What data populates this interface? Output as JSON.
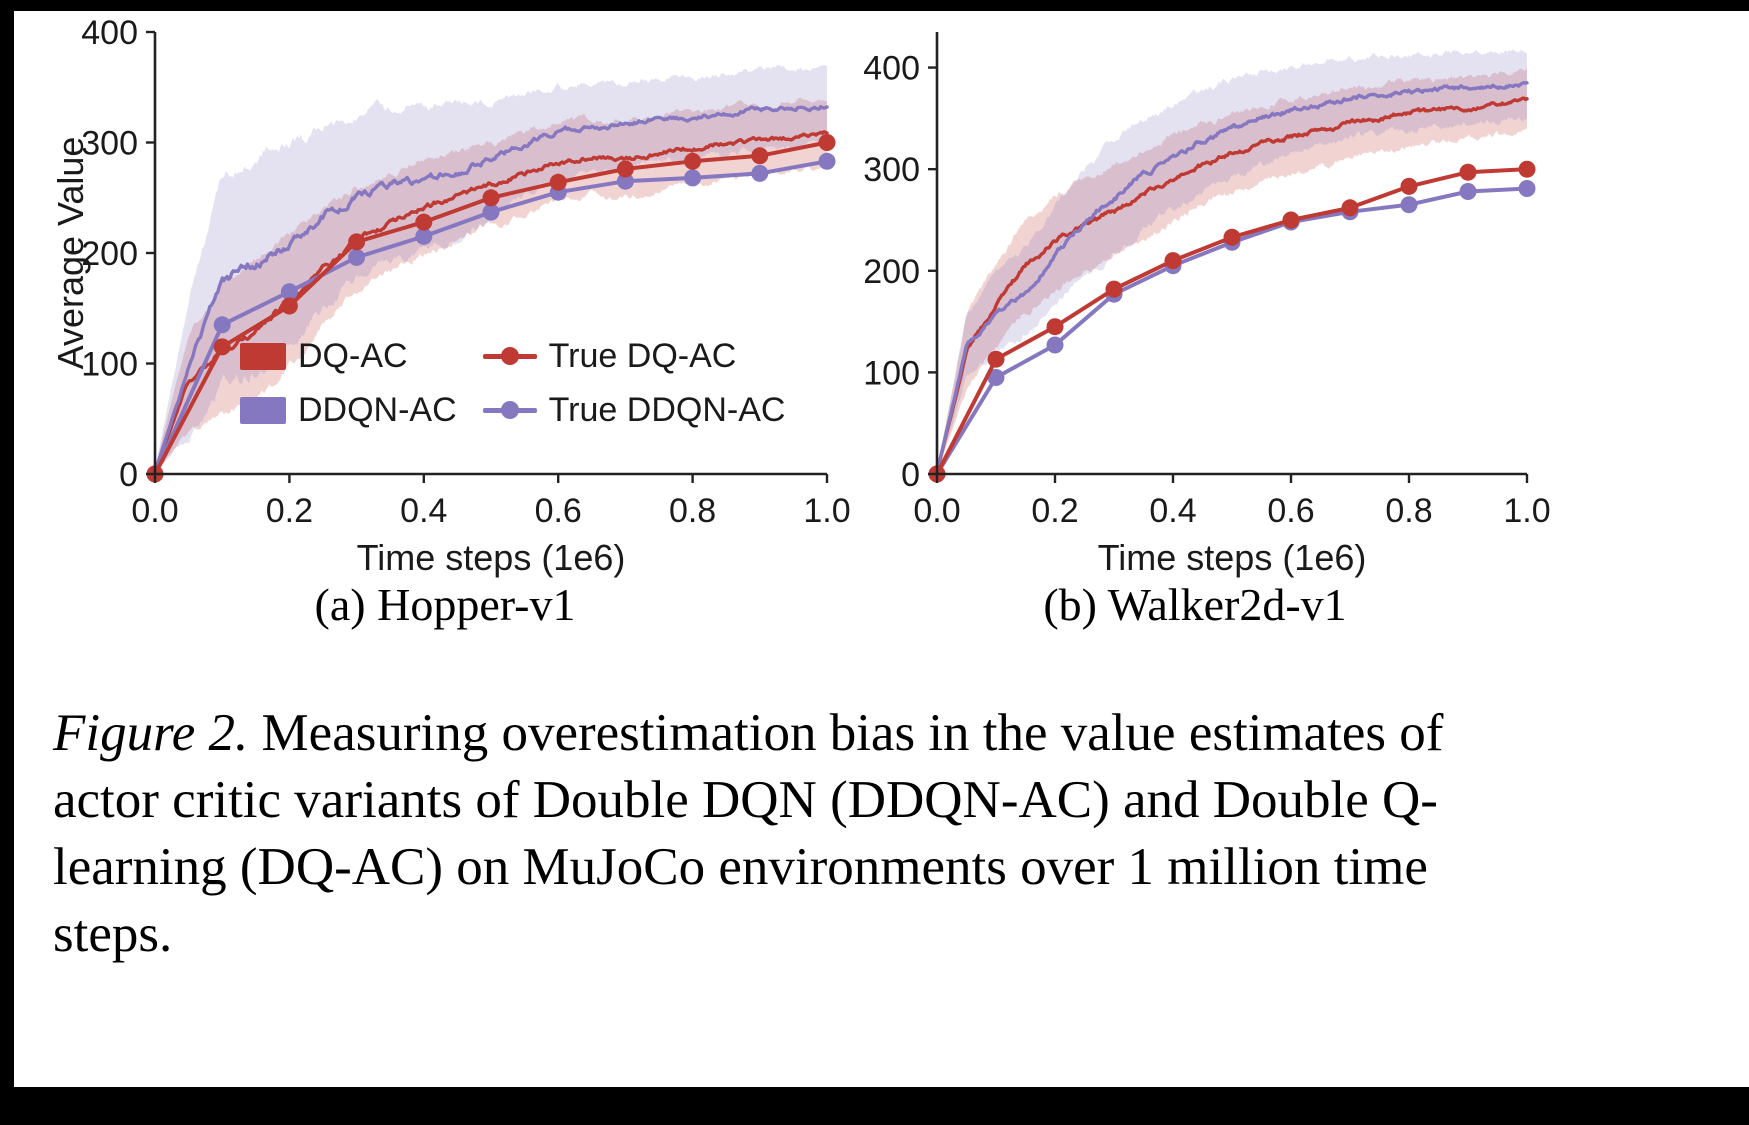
{
  "colors": {
    "red": "#bf3a32",
    "purple": "#8677c1",
    "axis": "#222222",
    "text": "#1a1a1a",
    "background": "#ffffff",
    "frame": "#000000"
  },
  "caption": {
    "figure_label": "Figure 2.",
    "lines": [
      "Measuring overestimation bias in the value estimates of",
      "actor critic variants of Double DQN (DDQN-AC) and Double Q-",
      "learning (DQ-AC) on MuJoCo environments over 1 million time",
      "steps."
    ]
  },
  "chart_data": [
    {
      "type": "line",
      "title": "(a) Hopper-v1",
      "xlabel": "Time steps (1e6)",
      "ylabel": "Average Value",
      "xlim": [
        0.0,
        1.0
      ],
      "ylim": [
        0,
        400
      ],
      "xticks": [
        0.0,
        0.2,
        0.4,
        0.6,
        0.8,
        1.0
      ],
      "xtick_labels": [
        "0.0",
        "0.2",
        "0.4",
        "0.6",
        "0.8",
        "1.0"
      ],
      "yticks": [
        0,
        100,
        200,
        300,
        400
      ],
      "ytick_labels": [
        "0",
        "100",
        "200",
        "300",
        "400"
      ],
      "grid": false,
      "legend_position": "inside lower center",
      "x_anchors": [
        0,
        0.05,
        0.1,
        0.15,
        0.2,
        0.25,
        0.3,
        0.35,
        0.4,
        0.45,
        0.5,
        0.55,
        0.6,
        0.65,
        0.7,
        0.75,
        0.8,
        0.85,
        0.9,
        0.95,
        1.0
      ],
      "x_markers": [
        0,
        0.1,
        0.2,
        0.3,
        0.4,
        0.5,
        0.6,
        0.7,
        0.8,
        0.9,
        1.0
      ],
      "series": [
        {
          "name": "DQ-AC",
          "style": "band",
          "color": "#bf3a32",
          "values": [
            2,
            85,
            113,
            130,
            158,
            186,
            212,
            228,
            242,
            252,
            262,
            272,
            283,
            287,
            284,
            290,
            295,
            299,
            302,
            305,
            308
          ],
          "band": [
            2,
            45,
            58,
            62,
            58,
            52,
            48,
            45,
            42,
            40,
            38,
            36,
            35,
            34,
            34,
            33,
            33,
            32,
            32,
            31,
            30
          ]
        },
        {
          "name": "DDQN-AC",
          "style": "band",
          "color": "#8677c1",
          "values": [
            2,
            95,
            175,
            192,
            207,
            232,
            252,
            262,
            266,
            273,
            286,
            298,
            310,
            315,
            318,
            322,
            323,
            326,
            330,
            331,
            334
          ],
          "band": [
            2,
            60,
            95,
            100,
            92,
            82,
            75,
            70,
            66,
            60,
            52,
            46,
            42,
            40,
            38,
            37,
            36,
            36,
            35,
            35,
            34
          ]
        },
        {
          "name": "True DQ-AC",
          "style": "marker",
          "color": "#bf3a32",
          "values": [
            0,
            115,
            152,
            210,
            228,
            250,
            264,
            276,
            283,
            288,
            300
          ]
        },
        {
          "name": "True DDQN-AC",
          "style": "marker",
          "color": "#8677c1",
          "values": [
            0,
            135,
            165,
            196,
            215,
            237,
            255,
            265,
            268,
            272,
            283
          ]
        }
      ]
    },
    {
      "type": "line",
      "title": "(b) Walker2d-v1",
      "xlabel": "Time steps (1e6)",
      "ylabel": "",
      "xlim": [
        0.0,
        1.0
      ],
      "ylim": [
        0,
        435
      ],
      "xticks": [
        0.0,
        0.2,
        0.4,
        0.6,
        0.8,
        1.0
      ],
      "xtick_labels": [
        "0.0",
        "0.2",
        "0.4",
        "0.6",
        "0.8",
        "1.0"
      ],
      "yticks": [
        0,
        100,
        200,
        300,
        400
      ],
      "ytick_labels": [
        "0",
        "100",
        "200",
        "300",
        "400"
      ],
      "grid": false,
      "legend_position": "none",
      "x_anchors": [
        0,
        0.05,
        0.1,
        0.15,
        0.2,
        0.25,
        0.3,
        0.35,
        0.4,
        0.45,
        0.5,
        0.55,
        0.6,
        0.65,
        0.7,
        0.75,
        0.8,
        0.85,
        0.9,
        0.95,
        1.0
      ],
      "x_markers": [
        0,
        0.1,
        0.2,
        0.3,
        0.4,
        0.5,
        0.6,
        0.7,
        0.8,
        0.9,
        1.0
      ],
      "series": [
        {
          "name": "DQ-AC",
          "style": "band",
          "color": "#bf3a32",
          "values": [
            2,
            120,
            165,
            205,
            228,
            244,
            258,
            275,
            292,
            305,
            315,
            324,
            332,
            338,
            345,
            350,
            355,
            358,
            360,
            364,
            368
          ],
          "band": [
            2,
            35,
            42,
            46,
            46,
            45,
            45,
            44,
            42,
            40,
            38,
            37,
            36,
            35,
            34,
            33,
            32,
            31,
            30,
            30,
            30
          ]
        },
        {
          "name": "DDQN-AC",
          "style": "band",
          "color": "#8677c1",
          "values": [
            2,
            125,
            158,
            178,
            215,
            248,
            272,
            295,
            312,
            328,
            340,
            350,
            358,
            364,
            370,
            374,
            376,
            378,
            380,
            382,
            384
          ],
          "band": [
            2,
            30,
            38,
            42,
            48,
            52,
            55,
            54,
            52,
            50,
            48,
            45,
            42,
            40,
            38,
            37,
            36,
            35,
            35,
            34,
            34
          ]
        },
        {
          "name": "True DQ-AC",
          "style": "marker",
          "color": "#bf3a32",
          "values": [
            0,
            113,
            145,
            182,
            210,
            233,
            250,
            262,
            283,
            297,
            300
          ]
        },
        {
          "name": "True DDQN-AC",
          "style": "marker",
          "color": "#8677c1",
          "values": [
            0,
            95,
            127,
            177,
            205,
            228,
            248,
            258,
            265,
            278,
            281
          ]
        }
      ]
    }
  ]
}
